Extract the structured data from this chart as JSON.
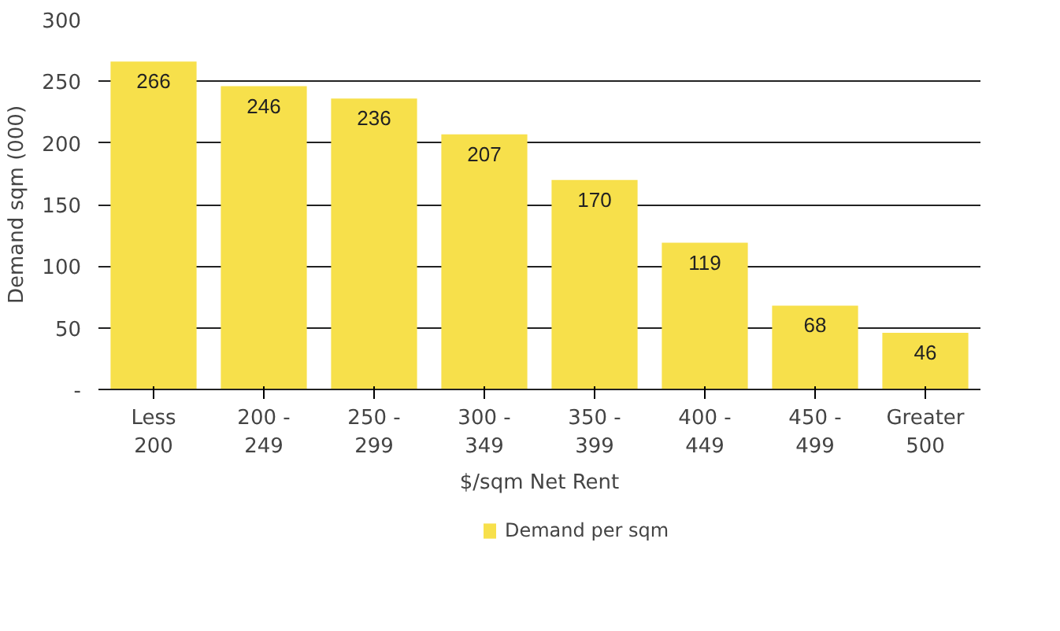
{
  "chart_data": {
    "type": "bar",
    "xlabel": "$/sqm Net Rent",
    "ylabel": "Demand sqm (000)",
    "categories": [
      "Less\n200",
      "200 -\n249",
      "250 -\n299",
      "300 -\n349",
      "350 -\n399",
      "400 -\n449",
      "450 -\n499",
      "Greater\n500"
    ],
    "series": [
      {
        "name": "Demand per sqm",
        "color": "#f7e04b",
        "values": [
          266,
          246,
          236,
          207,
          170,
          119,
          68,
          46
        ]
      }
    ],
    "ylim": [
      0,
      300
    ],
    "yticks": [
      {
        "value": 0,
        "label": "-"
      },
      50,
      100,
      150,
      200,
      250,
      300
    ],
    "grid": "y",
    "legend": "bottom",
    "data_labels": true
  }
}
